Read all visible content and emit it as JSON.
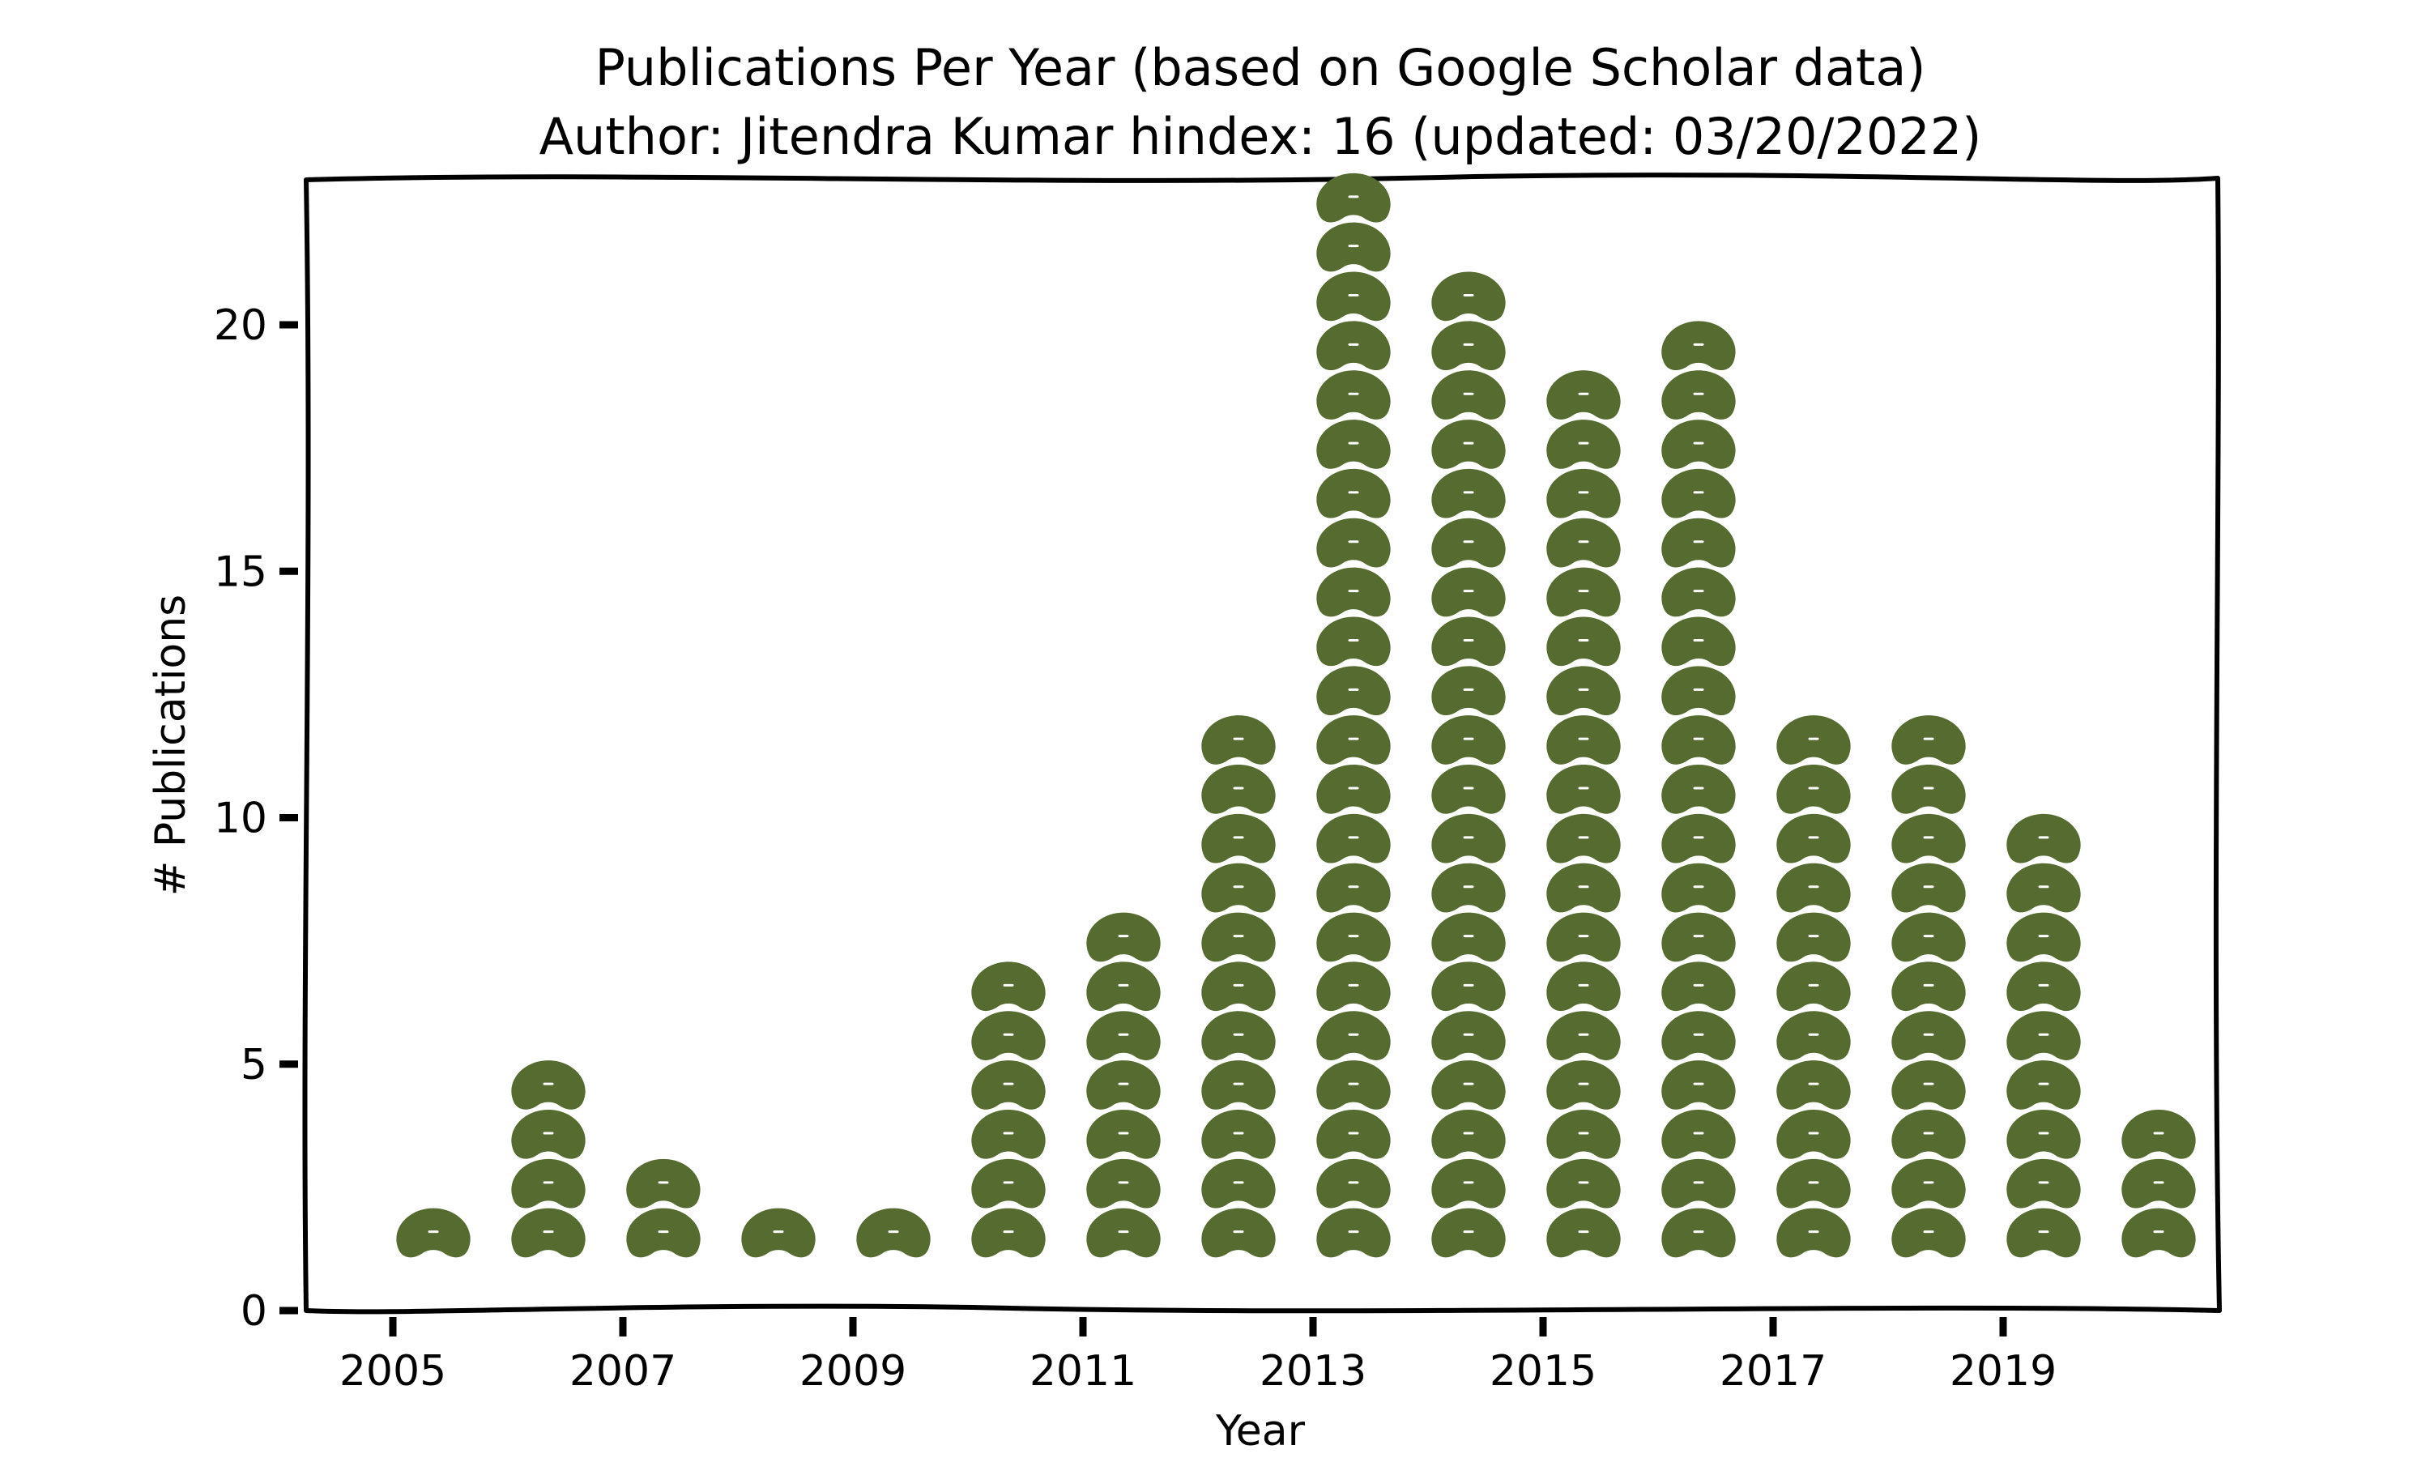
{
  "chart_data": {
    "type": "bar",
    "title": "Publications Per Year (based on Google Scholar data)",
    "subtitle": "Author: Jitendra Kumar hindex: 16 (updated: 03/20/2022)",
    "xlabel": "Year",
    "ylabel": "# Publications",
    "categories": [
      2005,
      2006,
      2007,
      2008,
      2009,
      2010,
      2011,
      2012,
      2013,
      2014,
      2015,
      2016,
      2017,
      2018,
      2019,
      2020
    ],
    "values": [
      1,
      4,
      2,
      1,
      1,
      6,
      7,
      11,
      22,
      20,
      18,
      19,
      11,
      11,
      9,
      3
    ],
    "xticks": [
      "2005",
      "2007",
      "2009",
      "2011",
      "2013",
      "2015",
      "2017",
      "2019"
    ],
    "yticks": [
      "0",
      "5",
      "10",
      "15",
      "20"
    ],
    "ylim": [
      0,
      23.5
    ],
    "xlim": [
      2004.4,
      2020.9
    ],
    "marker": "bean-icon",
    "marker_color": "#556b2f",
    "grid": false,
    "legend": "none"
  }
}
